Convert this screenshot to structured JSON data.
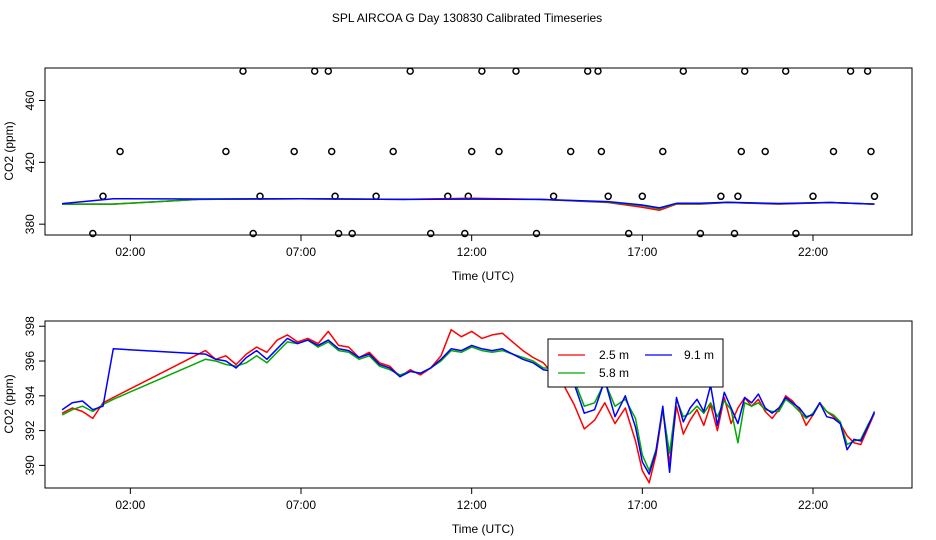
{
  "title": "SPL AIRCOA G  Day 130830  Calibrated Timeseries",
  "chart_data": [
    {
      "type": "scatter",
      "xlabel": "Time (UTC)",
      "ylabel": "CO2 (ppm)",
      "xlim": [
        -0.5,
        24.9
      ],
      "ylim": [
        373,
        481
      ],
      "xticks": [
        2,
        7,
        12,
        17,
        22
      ],
      "xtick_labels": [
        "02:00",
        "07:00",
        "12:00",
        "17:00",
        "22:00"
      ],
      "yticks": [
        380,
        420,
        460
      ],
      "ytick_labels": [
        "380",
        "420",
        "460"
      ],
      "grid": false,
      "outlier_points": {
        "x": [
          0.9,
          1.2,
          1.7,
          4.8,
          5.3,
          5.6,
          5.8,
          6.8,
          7.4,
          7.8,
          7.9,
          8.0,
          8.1,
          8.5,
          9.2,
          9.7,
          10.2,
          10.8,
          11.3,
          11.8,
          11.9,
          12.0,
          12.3,
          12.8,
          13.3,
          13.9,
          14.4,
          14.9,
          15.4,
          15.7,
          15.8,
          16.0,
          16.6,
          17.0,
          17.6,
          18.2,
          18.7,
          19.3,
          19.7,
          19.8,
          19.9,
          20.0,
          20.6,
          21.2,
          21.5,
          22.0,
          22.6,
          23.1,
          23.6,
          23.7,
          23.8
        ],
        "y": [
          374,
          398,
          427,
          427,
          482,
          374,
          398,
          427,
          482,
          482,
          427,
          398,
          374,
          374,
          398,
          427,
          482,
          374,
          398,
          374,
          398,
          427,
          482,
          427,
          482,
          374,
          398,
          427,
          482,
          482,
          427,
          398,
          374,
          398,
          427,
          482,
          374,
          398,
          374,
          398,
          427,
          482,
          427,
          482,
          374,
          398,
          427,
          482,
          482,
          427,
          398
        ]
      },
      "series": [
        {
          "name": "2.5 m",
          "color": "#ff0000",
          "x": [
            0,
            1.5,
            4.0,
            7.0,
            10.0,
            12.0,
            14.0,
            16.0,
            17.0,
            17.5,
            18.0,
            18.7,
            19.5,
            21.0,
            22.5,
            23.8
          ],
          "y": [
            393,
            393,
            396,
            396.5,
            396,
            396.8,
            396,
            394,
            391,
            389,
            393,
            393,
            394,
            393,
            394,
            393
          ]
        },
        {
          "name": "5.8 m",
          "color": "#00aa00",
          "x": [
            0,
            1.5,
            4.0,
            7.0,
            10.0,
            12.0,
            14.0,
            16.0,
            17.0,
            17.5,
            18.0,
            18.7,
            19.5,
            21.0,
            22.5,
            23.8
          ],
          "y": [
            393,
            393,
            396,
            396.5,
            396,
            396.2,
            396,
            394.3,
            392,
            390,
            393.2,
            393.2,
            394,
            393.2,
            394,
            393
          ]
        },
        {
          "name": "9.1 m",
          "color": "#0000ff",
          "x": [
            0,
            1.5,
            4.0,
            7.0,
            10.0,
            12.0,
            14.0,
            16.0,
            17.0,
            17.5,
            18.0,
            18.7,
            19.5,
            21.0,
            22.5,
            23.8
          ],
          "y": [
            393.3,
            396.5,
            396.3,
            396.5,
            396,
            396.3,
            396,
            394.6,
            392.4,
            390.5,
            393.5,
            393.5,
            394.2,
            393.4,
            394,
            393
          ]
        }
      ]
    },
    {
      "type": "line",
      "xlabel": "Time (UTC)",
      "ylabel": "CO2 (ppm)",
      "xlim": [
        -0.5,
        24.9
      ],
      "ylim": [
        388.7,
        398.3
      ],
      "xticks": [
        2,
        7,
        12,
        17,
        22
      ],
      "xtick_labels": [
        "02:00",
        "07:00",
        "12:00",
        "17:00",
        "22:00"
      ],
      "yticks": [
        390,
        392,
        394,
        396,
        398
      ],
      "ytick_labels": [
        "390",
        "392",
        "394",
        "396",
        "398"
      ],
      "grid": false,
      "legend_position": "top-right",
      "series": [
        {
          "name": "2.5 m",
          "color": "#ff0000",
          "x": [
            0,
            0.3,
            0.6,
            0.9,
            1.2,
            1.5,
            4.2,
            4.5,
            4.8,
            5.1,
            5.4,
            5.7,
            6.0,
            6.3,
            6.6,
            6.9,
            7.2,
            7.5,
            7.8,
            8.1,
            8.4,
            8.7,
            9.0,
            9.3,
            9.6,
            9.9,
            10.2,
            10.5,
            10.8,
            11.1,
            11.4,
            11.7,
            12.0,
            12.3,
            12.6,
            12.9,
            13.2,
            13.5,
            13.8,
            14.1,
            14.4,
            14.7,
            15.0,
            15.3,
            15.6,
            15.9,
            16.2,
            16.5,
            16.8,
            17.0,
            17.2,
            17.4,
            17.6,
            17.8,
            18.0,
            18.2,
            18.4,
            18.6,
            18.8,
            19.0,
            19.2,
            19.4,
            19.6,
            19.8,
            20.0,
            20.2,
            20.4,
            20.6,
            20.8,
            21.0,
            21.2,
            21.4,
            21.6,
            21.8,
            22.0,
            22.2,
            22.4,
            22.6,
            22.8,
            23.0,
            23.2,
            23.4,
            23.6,
            23.8
          ],
          "y": [
            393,
            393.3,
            393.1,
            392.7,
            393.6,
            393.9,
            396.6,
            396.1,
            396.3,
            395.8,
            396.4,
            396.8,
            396.5,
            397.2,
            397.5,
            397.1,
            397.3,
            397,
            397.7,
            396.9,
            396.8,
            396.2,
            396.5,
            395.9,
            395.7,
            395.1,
            395.5,
            395.2,
            395.6,
            396.3,
            397.8,
            397.4,
            397.7,
            397.3,
            397.5,
            397.6,
            397.1,
            396.6,
            396.2,
            395.9,
            395.2,
            394.6,
            393.5,
            392.1,
            392.6,
            393.6,
            392.4,
            393.3,
            391.4,
            389.7,
            389,
            390.6,
            393.2,
            390.1,
            393.4,
            391.8,
            392.6,
            393.2,
            392.3,
            393.5,
            392,
            393.9,
            392.4,
            393.3,
            393.9,
            393.4,
            393.8,
            393.1,
            392.7,
            393.2,
            394,
            393.7,
            393.2,
            392.3,
            392.9,
            393.6,
            393.1,
            392.8,
            392.4,
            391.7,
            391.3,
            391.2,
            392.1,
            393
          ]
        },
        {
          "name": "5.8 m",
          "color": "#00aa00",
          "x": [
            0,
            0.3,
            0.6,
            0.9,
            1.2,
            1.5,
            4.2,
            4.5,
            4.8,
            5.1,
            5.4,
            5.7,
            6.0,
            6.3,
            6.6,
            6.9,
            7.2,
            7.5,
            7.8,
            8.1,
            8.4,
            8.7,
            9.0,
            9.3,
            9.6,
            9.9,
            10.2,
            10.5,
            10.8,
            11.1,
            11.4,
            11.7,
            12.0,
            12.3,
            12.6,
            12.9,
            13.2,
            13.5,
            13.8,
            14.1,
            14.4,
            14.7,
            15.0,
            15.3,
            15.6,
            15.9,
            16.2,
            16.5,
            16.8,
            17.0,
            17.2,
            17.4,
            17.6,
            17.8,
            18.0,
            18.2,
            18.4,
            18.6,
            18.8,
            19.0,
            19.2,
            19.4,
            19.6,
            19.8,
            20.0,
            20.2,
            20.4,
            20.6,
            20.8,
            21.0,
            21.2,
            21.4,
            21.6,
            21.8,
            22.0,
            22.2,
            22.4,
            22.6,
            22.8,
            23.0,
            23.2,
            23.4,
            23.6,
            23.8
          ],
          "y": [
            392.9,
            393.2,
            393.4,
            393.1,
            393.5,
            393.8,
            396.1,
            396,
            395.8,
            395.7,
            395.9,
            396.3,
            395.9,
            396.5,
            397.1,
            397,
            397.2,
            396.8,
            397.1,
            396.6,
            396.5,
            396.1,
            396.3,
            395.7,
            395.5,
            395.2,
            395.4,
            395.3,
            395.6,
            396,
            396.6,
            396.5,
            396.8,
            396.6,
            396.5,
            396.6,
            396.4,
            396.2,
            396,
            395.6,
            395.6,
            395.4,
            394.9,
            393.4,
            393.6,
            394.8,
            393.4,
            393.8,
            392.7,
            390.6,
            389.7,
            390.9,
            393.2,
            390.7,
            393.8,
            392.8,
            393,
            393.4,
            393,
            393.6,
            392.8,
            393.7,
            393.2,
            391.3,
            393.6,
            393.4,
            393.6,
            393.2,
            393.1,
            393.1,
            393.8,
            393.5,
            393.1,
            392.7,
            393,
            393.6,
            393.1,
            392.9,
            392.5,
            391.2,
            391.4,
            391.5,
            392.3,
            393
          ]
        },
        {
          "name": "9.1 m",
          "color": "#0000ff",
          "x": [
            0,
            0.3,
            0.6,
            0.9,
            1.2,
            1.5,
            4.2,
            4.5,
            4.8,
            5.1,
            5.4,
            5.7,
            6.0,
            6.3,
            6.6,
            6.9,
            7.2,
            7.5,
            7.8,
            8.1,
            8.4,
            8.7,
            9.0,
            9.3,
            9.6,
            9.9,
            10.2,
            10.5,
            10.8,
            11.1,
            11.4,
            11.7,
            12.0,
            12.3,
            12.6,
            12.9,
            13.2,
            13.5,
            13.8,
            14.1,
            14.4,
            14.7,
            15.0,
            15.3,
            15.6,
            15.9,
            16.2,
            16.5,
            16.8,
            17.0,
            17.2,
            17.4,
            17.6,
            17.8,
            18.0,
            18.2,
            18.4,
            18.6,
            18.8,
            19.0,
            19.2,
            19.4,
            19.6,
            19.8,
            20.0,
            20.2,
            20.4,
            20.6,
            20.8,
            21.0,
            21.2,
            21.4,
            21.6,
            21.8,
            22.0,
            22.2,
            22.4,
            22.6,
            22.8,
            23.0,
            23.2,
            23.4,
            23.6,
            23.8
          ],
          "y": [
            393.2,
            393.6,
            393.7,
            393.2,
            393.4,
            396.7,
            396.4,
            396.1,
            396,
            395.6,
            396.2,
            396.6,
            396.1,
            396.7,
            397.3,
            397,
            397.2,
            396.9,
            397.2,
            396.7,
            396.6,
            396.2,
            396.4,
            395.8,
            395.6,
            395.1,
            395.4,
            395.3,
            395.6,
            396.1,
            396.7,
            396.6,
            396.9,
            396.7,
            396.6,
            396.7,
            396.4,
            396.1,
            395.9,
            395.5,
            395.4,
            395.1,
            394.7,
            393,
            393.2,
            394.9,
            392.8,
            394,
            392.2,
            390.2,
            389.5,
            390.8,
            393.4,
            389.6,
            393.9,
            392.5,
            393.3,
            393.8,
            393.1,
            394.6,
            392.3,
            394.2,
            393.3,
            392.4,
            393.9,
            393.6,
            394.1,
            393.3,
            393,
            393.3,
            393.9,
            393.6,
            393.3,
            392.8,
            392.9,
            393.6,
            392.8,
            392.7,
            392.4,
            390.9,
            391.5,
            391.4,
            392.2,
            393.1
          ]
        }
      ]
    }
  ]
}
